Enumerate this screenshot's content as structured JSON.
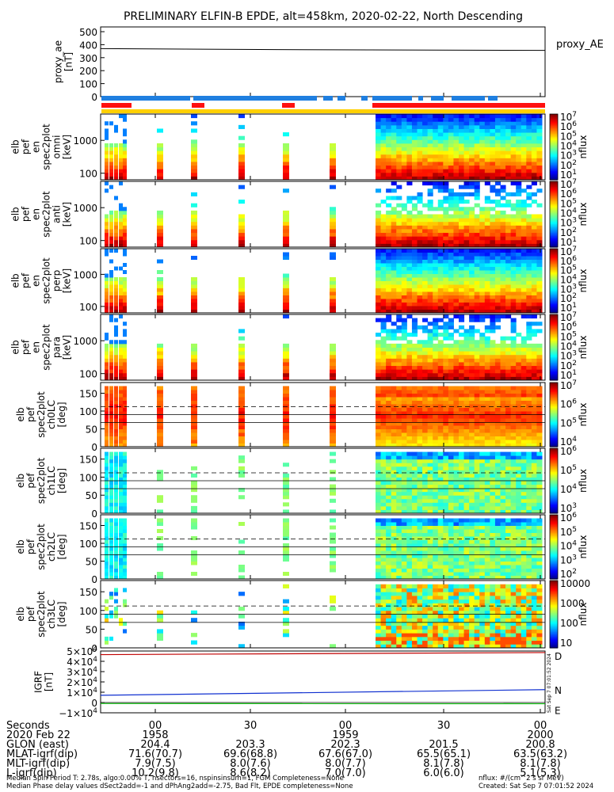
{
  "title": "PRELIMINARY ELFIN-B EPDE, alt=458km, 2020-02-22, North Descending",
  "colors": {
    "mlt_bar": "#1f7fe0",
    "lat_bar": "#ff1010",
    "yellow_bar": "#ffd000",
    "grf_d": "#c00000",
    "grf_n": "#1030d0",
    "grf_e": "#10c010"
  },
  "chart_data": [
    {
      "type": "line",
      "id": "proxy_ae",
      "ylabel": "proxy_ae\n[nT]",
      "legend": "proxy_AE",
      "ylim": [
        0,
        500
      ],
      "yticks": [
        "500",
        "400",
        "300",
        "200",
        "100",
        "0"
      ],
      "series": [
        {
          "name": "proxy_AE",
          "x": [
            0,
            0.4,
            1
          ],
          "values": [
            370,
            362,
            356
          ]
        }
      ]
    },
    {
      "type": "heatmap",
      "id": "omni",
      "ylabel": "elb\npef\nen\nspec2plot\nomni\n[keV]",
      "yticks": [
        "1000",
        "100"
      ],
      "colorbar_ticks": [
        "10^7",
        "10^6",
        "10^5",
        "10^4",
        "10^3",
        "10^2",
        "10^1"
      ],
      "colorbar_label": "nflux",
      "pattern": "energy"
    },
    {
      "type": "heatmap",
      "id": "anti",
      "ylabel": "elb\npef\nen\nspec2plot\nanti\n[keV]",
      "yticks": [
        "1000",
        "100"
      ],
      "colorbar_ticks": [
        "10^7",
        "10^6",
        "10^5",
        "10^4",
        "10^3",
        "10^2",
        "10^1"
      ],
      "colorbar_label": "nflux",
      "pattern": "energy_sparse"
    },
    {
      "type": "heatmap",
      "id": "perp",
      "ylabel": "elb\npef\nen\nspec2plot\nperp\n[keV]",
      "yticks": [
        "1000",
        "100"
      ],
      "colorbar_ticks": [
        "10^7",
        "10^6",
        "10^5",
        "10^4",
        "10^3",
        "10^2",
        "10^1"
      ],
      "colorbar_label": "nflux",
      "pattern": "energy"
    },
    {
      "type": "heatmap",
      "id": "para",
      "ylabel": "elb\npef\nen\nspec2plot\npara\n[keV]",
      "yticks": [
        "1000",
        "100"
      ],
      "colorbar_ticks": [
        "10^7",
        "10^6",
        "10^5",
        "10^4",
        "10^3",
        "10^2",
        "10^1"
      ],
      "colorbar_label": "nflux",
      "pattern": "energy_sparse2"
    },
    {
      "type": "heatmap",
      "id": "ch0LC",
      "ylabel": "elb\npef\nspec2plot\nch0LC\n[deg]",
      "ylim": [
        0,
        180
      ],
      "yticks": [
        "150",
        "100",
        "50",
        "0"
      ],
      "colorbar_ticks": [
        "10^7",
        "10^6",
        "10^5",
        "10^4"
      ],
      "colorbar_label": "nflux",
      "pattern": "pa_high"
    },
    {
      "type": "heatmap",
      "id": "ch1LC",
      "ylabel": "elb\npef\nspec2plot\nch1LC\n[deg]",
      "ylim": [
        0,
        180
      ],
      "yticks": [
        "150",
        "100",
        "50",
        "0"
      ],
      "colorbar_ticks": [
        "10^6",
        "10^5",
        "10^4",
        "10^3"
      ],
      "colorbar_label": "nflux",
      "pattern": "pa_mid"
    },
    {
      "type": "heatmap",
      "id": "ch2LC",
      "ylabel": "elb\npef\nspec2plot\nch2LC\n[deg]",
      "ylim": [
        0,
        180
      ],
      "yticks": [
        "150",
        "100",
        "50",
        "0"
      ],
      "colorbar_ticks": [
        "10^6",
        "10^5",
        "10^4",
        "10^3",
        "10^2"
      ],
      "colorbar_label": "nflux",
      "pattern": "pa_mid"
    },
    {
      "type": "heatmap",
      "id": "ch3LC",
      "ylabel": "elb\npef\nspec2plot\nch3LC\n[deg]",
      "ylim": [
        0,
        180
      ],
      "yticks": [
        "150",
        "100",
        "50",
        "0"
      ],
      "colorbar_ticks": [
        "10000",
        "1000",
        "100",
        "10"
      ],
      "colorbar_label": "nflux",
      "pattern": "pa_low"
    },
    {
      "type": "line",
      "id": "igrf",
      "ylabel": "IGRF\n[nT]",
      "ylim": [
        -10000,
        50000
      ],
      "yticks": [
        "5×10^4",
        "4×10^4",
        "3×10^4",
        "2×10^4",
        "1×10^4",
        "0",
        "−1×10^4"
      ],
      "series": [
        {
          "name": "D",
          "x": [
            0,
            1
          ],
          "values": [
            46500,
            48500
          ]
        },
        {
          "name": "N",
          "x": [
            0,
            1
          ],
          "values": [
            7000,
            12500
          ]
        },
        {
          "name": "E",
          "x": [
            0,
            1
          ],
          "values": [
            -1000,
            -1200
          ]
        }
      ]
    }
  ],
  "side_stamp": "Sat Sep  7 07:01:52 2024",
  "footer": {
    "rows": [
      {
        "label": "Seconds",
        "values": [
          "00",
          "30",
          "00",
          "30",
          "00"
        ]
      },
      {
        "label": "2020 Feb 22",
        "values": [
          "1958",
          "",
          "1959",
          "",
          "2000"
        ]
      },
      {
        "label": "GLON (east)",
        "values": [
          "204.4",
          "203.3",
          "202.3",
          "201.5",
          "200.8"
        ]
      },
      {
        "label": "MLAT-igrf(dip)",
        "values": [
          "71.6(70.7)",
          "69.6(68.8)",
          "67.6(67.0)",
          "65.5(65.1)",
          "63.5(63.2)"
        ]
      },
      {
        "label": "MLT-igrf(dip)",
        "values": [
          "7.9(7.5)",
          "8.0(7.6)",
          "8.0(7.7)",
          "8.1(7.8)",
          "8.1(7.8)"
        ]
      },
      {
        "label": "L-igrf(dip)",
        "values": [
          "10.2(9.8)",
          "8.6(8.2)",
          "7.0(7.0)",
          "6.0(6.0)",
          "5.1(5.3)"
        ]
      }
    ],
    "note1": "Median Spin Period T: 2.78s, algo:0.00% T, nsectors=16, nspinsinsum=1, FGM Completeness=None",
    "note1_right": "nflux: #/(cm^2 s sr MeV)",
    "note2": "Median Phase delay values dSect2add=-1 and dPhAng2add=-2.75, Bad Flt, EPDE completeness=None",
    "note2_right": "Created: Sat Sep  7 07:01:52 2024"
  }
}
